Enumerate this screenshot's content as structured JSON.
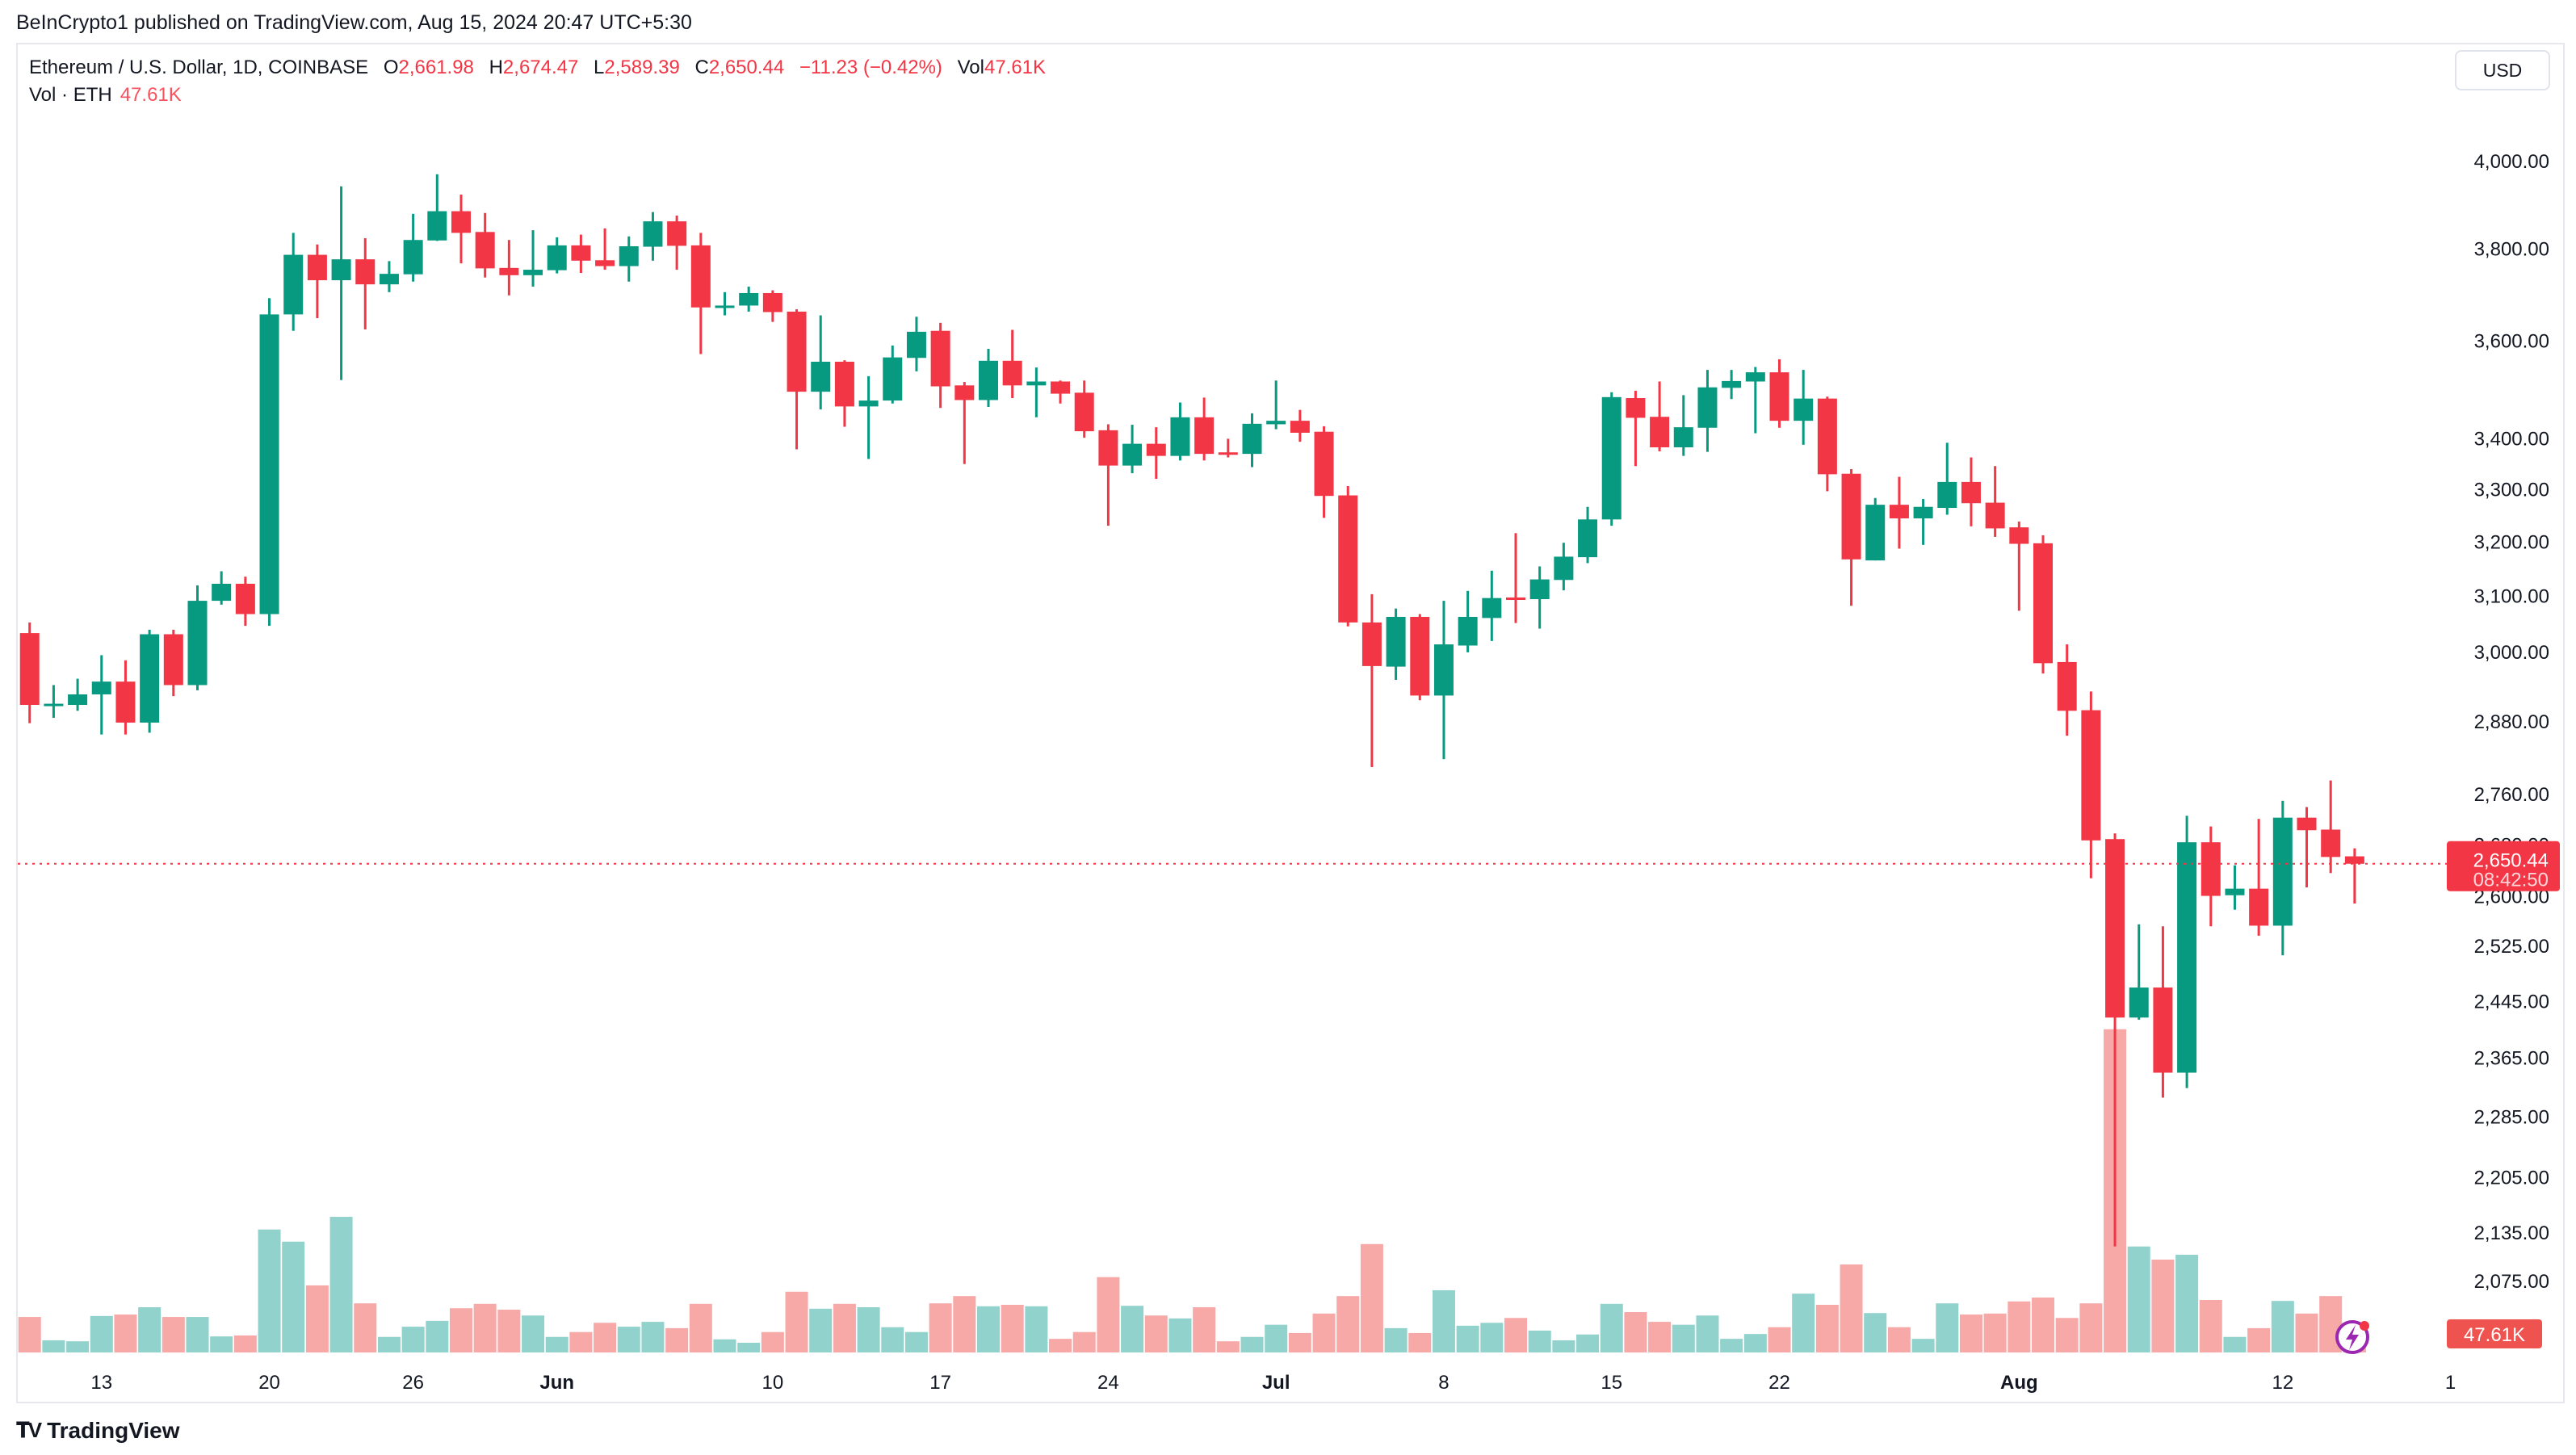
{
  "published": "BeInCrypto1 published on TradingView.com, Aug 15, 2024 20:47 UTC+5:30",
  "legend": {
    "symbol": "Ethereum / U.S. Dollar, 1D, COINBASE",
    "open_label": "O",
    "open": "2,661.98",
    "high_label": "H",
    "high": "2,674.47",
    "low_label": "L",
    "low": "2,589.39",
    "close_label": "C",
    "close": "2,650.44",
    "change": "−11.23 (−0.42%)",
    "vol_label": "Vol",
    "vol": "47.61K"
  },
  "volume_legend": {
    "label": "Vol · ETH",
    "value": "47.61K"
  },
  "currency_button": "USD",
  "last_price_label": {
    "price": "2,650.44",
    "countdown": "08:42:50"
  },
  "last_volume_label": "47.61K",
  "brand": "TradingView",
  "colors": {
    "up": "#089981",
    "down": "#f23645",
    "up_volume": "#92d2cc",
    "down_volume": "#f7a9a7",
    "last_price": "#f23645"
  },
  "icons": {
    "alert": "lightning-icon",
    "logo": "tradingview-logo-icon"
  },
  "chart_data": {
    "type": "candlestick",
    "y_scale": "log",
    "ylim": [
      2060,
      4060
    ],
    "volume_unit": "K",
    "grid": false,
    "y_ticks": [
      {
        "value": 4000,
        "label": "4,000.00"
      },
      {
        "value": 3800,
        "label": "3,800.00"
      },
      {
        "value": 3600,
        "label": "3,600.00"
      },
      {
        "value": 3400,
        "label": "3,400.00"
      },
      {
        "value": 3300,
        "label": "3,300.00"
      },
      {
        "value": 3200,
        "label": "3,200.00"
      },
      {
        "value": 3100,
        "label": "3,100.00"
      },
      {
        "value": 3000,
        "label": "3,000.00"
      },
      {
        "value": 2880,
        "label": "2,880.00"
      },
      {
        "value": 2760,
        "label": "2,760.00"
      },
      {
        "value": 2680,
        "label": "2,680.00"
      },
      {
        "value": 2600,
        "label": "2,600.00"
      },
      {
        "value": 2525,
        "label": "2,525.00"
      },
      {
        "value": 2445,
        "label": "2,445.00"
      },
      {
        "value": 2365,
        "label": "2,365.00"
      },
      {
        "value": 2285,
        "label": "2,285.00"
      },
      {
        "value": 2205,
        "label": "2,205.00"
      },
      {
        "value": 2135,
        "label": "2,135.00"
      },
      {
        "value": 2075,
        "label": "2,075.00"
      }
    ],
    "x_ticks": [
      {
        "date": "2024-05-13",
        "label": "13"
      },
      {
        "date": "2024-05-20",
        "label": "20"
      },
      {
        "date": "2024-05-26",
        "label": "26"
      },
      {
        "date": "2024-06-01",
        "label": "Jun"
      },
      {
        "date": "2024-06-10",
        "label": "10"
      },
      {
        "date": "2024-06-17",
        "label": "17"
      },
      {
        "date": "2024-06-24",
        "label": "24"
      },
      {
        "date": "2024-07-01",
        "label": "Jul"
      },
      {
        "date": "2024-07-08",
        "label": "8"
      },
      {
        "date": "2024-07-15",
        "label": "15"
      },
      {
        "date": "2024-07-22",
        "label": "22"
      },
      {
        "date": "2024-08-01",
        "label": "Aug"
      },
      {
        "date": "2024-08-12",
        "label": "12"
      },
      {
        "date": "2024-08-19",
        "label": "1"
      }
    ],
    "last_price": 2650.44,
    "columns": [
      "date",
      "open",
      "high",
      "low",
      "close",
      "volume"
    ],
    "candles": [
      [
        "2024-05-10",
        3034,
        3053,
        2878,
        2909,
        73
      ],
      [
        "2024-05-11",
        2909,
        2943,
        2887,
        2911,
        25
      ],
      [
        "2024-05-12",
        2909,
        2954,
        2899,
        2927,
        23
      ],
      [
        "2024-05-13",
        2927,
        2995,
        2859,
        2949,
        75
      ],
      [
        "2024-05-14",
        2949,
        2986,
        2859,
        2879,
        78
      ],
      [
        "2024-05-15",
        2879,
        3040,
        2862,
        3032,
        93
      ],
      [
        "2024-05-16",
        3032,
        3040,
        2924,
        2943,
        73
      ],
      [
        "2024-05-17",
        2943,
        3120,
        2934,
        3092,
        73
      ],
      [
        "2024-05-18",
        3092,
        3146,
        3085,
        3123,
        33
      ],
      [
        "2024-05-19",
        3123,
        3136,
        3047,
        3068,
        35
      ],
      [
        "2024-05-20",
        3068,
        3692,
        3047,
        3657,
        253
      ],
      [
        "2024-05-21",
        3657,
        3836,
        3622,
        3787,
        228
      ],
      [
        "2024-05-22",
        3787,
        3810,
        3649,
        3731,
        138
      ],
      [
        "2024-05-23",
        3731,
        3942,
        3519,
        3777,
        279
      ],
      [
        "2024-05-24",
        3777,
        3824,
        3625,
        3722,
        101
      ],
      [
        "2024-05-25",
        3722,
        3773,
        3705,
        3745,
        32
      ],
      [
        "2024-05-26",
        3744,
        3879,
        3728,
        3820,
        53
      ],
      [
        "2024-05-27",
        3819,
        3970,
        3818,
        3885,
        65
      ],
      [
        "2024-05-28",
        3885,
        3923,
        3768,
        3836,
        91
      ],
      [
        "2024-05-29",
        3838,
        3881,
        3737,
        3757,
        100
      ],
      [
        "2024-05-30",
        3758,
        3820,
        3698,
        3742,
        88
      ],
      [
        "2024-05-31",
        3742,
        3842,
        3717,
        3754,
        76
      ],
      [
        "2024-06-01",
        3753,
        3826,
        3746,
        3808,
        32
      ],
      [
        "2024-06-02",
        3808,
        3832,
        3747,
        3774,
        42
      ],
      [
        "2024-06-03",
        3775,
        3846,
        3754,
        3762,
        61
      ],
      [
        "2024-06-04",
        3762,
        3828,
        3728,
        3806,
        53
      ],
      [
        "2024-06-05",
        3805,
        3883,
        3774,
        3862,
        63
      ],
      [
        "2024-06-06",
        3862,
        3875,
        3754,
        3807,
        50
      ],
      [
        "2024-06-07",
        3808,
        3836,
        3573,
        3672,
        100
      ],
      [
        "2024-06-08",
        3672,
        3705,
        3655,
        3676,
        27
      ],
      [
        "2024-06-09",
        3676,
        3717,
        3663,
        3703,
        20
      ],
      [
        "2024-06-10",
        3703,
        3709,
        3641,
        3662,
        42
      ],
      [
        "2024-06-11",
        3663,
        3668,
        3379,
        3495,
        125
      ],
      [
        "2024-06-12",
        3495,
        3655,
        3459,
        3557,
        90
      ],
      [
        "2024-06-13",
        3557,
        3560,
        3424,
        3465,
        100
      ],
      [
        "2024-06-14",
        3465,
        3527,
        3360,
        3477,
        93
      ],
      [
        "2024-06-15",
        3477,
        3591,
        3471,
        3566,
        52
      ],
      [
        "2024-06-16",
        3565,
        3652,
        3537,
        3620,
        42
      ],
      [
        "2024-06-17",
        3622,
        3639,
        3462,
        3506,
        101
      ],
      [
        "2024-06-18",
        3508,
        3515,
        3350,
        3478,
        116
      ],
      [
        "2024-06-19",
        3478,
        3584,
        3464,
        3559,
        95
      ],
      [
        "2024-06-20",
        3559,
        3624,
        3482,
        3508,
        98
      ],
      [
        "2024-06-21",
        3508,
        3545,
        3443,
        3516,
        95
      ],
      [
        "2024-06-22",
        3516,
        3518,
        3471,
        3491,
        28
      ],
      [
        "2024-06-23",
        3493,
        3518,
        3402,
        3415,
        42
      ],
      [
        "2024-06-24",
        3417,
        3429,
        3231,
        3347,
        155
      ],
      [
        "2024-06-25",
        3347,
        3428,
        3332,
        3390,
        96
      ],
      [
        "2024-06-26",
        3390,
        3423,
        3321,
        3366,
        76
      ],
      [
        "2024-06-27",
        3366,
        3473,
        3357,
        3443,
        70
      ],
      [
        "2024-06-28",
        3443,
        3483,
        3357,
        3370,
        93
      ],
      [
        "2024-06-29",
        3373,
        3400,
        3363,
        3370,
        23
      ],
      [
        "2024-06-30",
        3370,
        3451,
        3344,
        3430,
        32
      ],
      [
        "2024-07-01",
        3429,
        3518,
        3419,
        3436,
        57
      ],
      [
        "2024-07-02",
        3436,
        3458,
        3394,
        3412,
        40
      ],
      [
        "2024-07-03",
        3414,
        3425,
        3246,
        3288,
        80
      ],
      [
        "2024-07-04",
        3289,
        3307,
        3046,
        3053,
        116
      ],
      [
        "2024-07-05",
        3053,
        3104,
        2805,
        2976,
        223
      ],
      [
        "2024-07-06",
        2975,
        3078,
        2952,
        3063,
        50
      ],
      [
        "2024-07-07",
        3063,
        3068,
        2917,
        2925,
        40
      ],
      [
        "2024-07-08",
        2925,
        3092,
        2818,
        3014,
        128
      ],
      [
        "2024-07-09",
        3012,
        3110,
        3000,
        3063,
        55
      ],
      [
        "2024-07-10",
        3061,
        3147,
        3020,
        3097,
        61
      ],
      [
        "2024-07-11",
        3098,
        3217,
        3052,
        3096,
        71
      ],
      [
        "2024-07-12",
        3095,
        3155,
        3042,
        3131,
        45
      ],
      [
        "2024-07-13",
        3130,
        3199,
        3111,
        3173,
        25
      ],
      [
        "2024-07-14",
        3172,
        3267,
        3161,
        3243,
        37
      ],
      [
        "2024-07-15",
        3243,
        3494,
        3231,
        3484,
        100
      ],
      [
        "2024-07-16",
        3482,
        3497,
        3346,
        3442,
        83
      ],
      [
        "2024-07-17",
        3444,
        3516,
        3375,
        3383,
        63
      ],
      [
        "2024-07-18",
        3383,
        3488,
        3366,
        3423,
        57
      ],
      [
        "2024-07-19",
        3422,
        3540,
        3374,
        3504,
        76
      ],
      [
        "2024-07-20",
        3503,
        3540,
        3480,
        3517,
        28
      ],
      [
        "2024-07-21",
        3516,
        3546,
        3411,
        3535,
        38
      ],
      [
        "2024-07-22",
        3535,
        3562,
        3422,
        3436,
        52
      ],
      [
        "2024-07-23",
        3436,
        3540,
        3388,
        3481,
        121
      ],
      [
        "2024-07-24",
        3481,
        3485,
        3297,
        3330,
        98
      ],
      [
        "2024-07-25",
        3331,
        3340,
        3083,
        3168,
        181
      ],
      [
        "2024-07-26",
        3166,
        3284,
        3166,
        3271,
        81
      ],
      [
        "2024-07-27",
        3271,
        3325,
        3188,
        3245,
        52
      ],
      [
        "2024-07-28",
        3245,
        3282,
        3195,
        3267,
        28
      ],
      [
        "2024-07-29",
        3265,
        3392,
        3252,
        3315,
        101
      ],
      [
        "2024-07-30",
        3315,
        3363,
        3230,
        3274,
        78
      ],
      [
        "2024-07-31",
        3275,
        3346,
        3210,
        3226,
        80
      ],
      [
        "2024-08-01",
        3228,
        3239,
        3074,
        3197,
        105
      ],
      [
        "2024-08-02",
        3198,
        3213,
        2963,
        2981,
        113
      ],
      [
        "2024-08-03",
        2983,
        3014,
        2857,
        2899,
        71
      ],
      [
        "2024-08-04",
        2900,
        2932,
        2628,
        2687,
        101
      ],
      [
        "2024-08-05",
        2689,
        2698,
        2118,
        2422,
        665
      ],
      [
        "2024-08-06",
        2422,
        2558,
        2419,
        2465,
        218
      ],
      [
        "2024-08-07",
        2465,
        2555,
        2311,
        2345,
        191
      ],
      [
        "2024-08-08",
        2345,
        2726,
        2324,
        2684,
        201
      ],
      [
        "2024-08-09",
        2684,
        2709,
        2555,
        2601,
        108
      ],
      [
        "2024-08-10",
        2602,
        2648,
        2580,
        2612,
        32
      ],
      [
        "2024-08-11",
        2612,
        2721,
        2541,
        2556,
        50
      ],
      [
        "2024-08-12",
        2556,
        2750,
        2512,
        2723,
        106
      ],
      [
        "2024-08-13",
        2723,
        2740,
        2614,
        2703,
        80
      ],
      [
        "2024-08-14",
        2704,
        2783,
        2636,
        2661,
        116
      ],
      [
        "2024-08-15",
        2661.98,
        2674.47,
        2589.39,
        2650.44,
        47.61
      ]
    ]
  }
}
